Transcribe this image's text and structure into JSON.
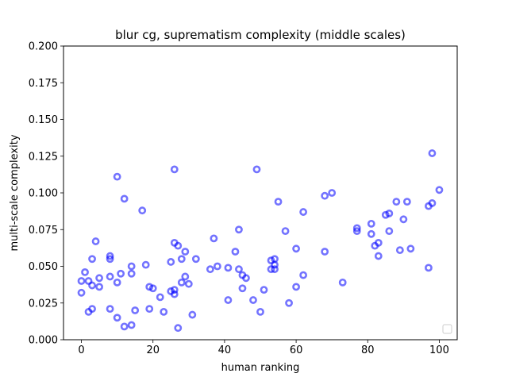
{
  "chart_data": {
    "type": "scatter",
    "title": "blur cg, suprematism complexity (middle scales)",
    "xlabel": "human ranking",
    "ylabel": "multi-scale complexity",
    "xlim": [
      -5,
      105
    ],
    "ylim": [
      0,
      0.2
    ],
    "xticks": [
      0,
      20,
      40,
      60,
      80,
      100
    ],
    "yticks": [
      0.0,
      0.025,
      0.05,
      0.075,
      0.1,
      0.125,
      0.15,
      0.175,
      0.2
    ],
    "ytick_labels": [
      "0.000",
      "0.025",
      "0.050",
      "0.075",
      "0.100",
      "0.125",
      "0.150",
      "0.175",
      "0.200"
    ],
    "grid": false,
    "legend": "lower-right (empty)",
    "marker_color": "#0000ff",
    "points": [
      [
        0,
        0.032
      ],
      [
        0,
        0.04
      ],
      [
        1,
        0.046
      ],
      [
        2,
        0.04
      ],
      [
        2,
        0.019
      ],
      [
        3,
        0.021
      ],
      [
        3,
        0.037
      ],
      [
        3,
        0.055
      ],
      [
        4,
        0.067
      ],
      [
        5,
        0.042
      ],
      [
        5,
        0.036
      ],
      [
        8,
        0.057
      ],
      [
        8,
        0.055
      ],
      [
        8,
        0.043
      ],
      [
        8,
        0.021
      ],
      [
        10,
        0.111
      ],
      [
        10,
        0.039
      ],
      [
        10,
        0.015
      ],
      [
        11,
        0.045
      ],
      [
        12,
        0.096
      ],
      [
        12,
        0.009
      ],
      [
        14,
        0.05
      ],
      [
        14,
        0.045
      ],
      [
        14,
        0.01
      ],
      [
        15,
        0.02
      ],
      [
        17,
        0.088
      ],
      [
        18,
        0.051
      ],
      [
        19,
        0.036
      ],
      [
        19,
        0.021
      ],
      [
        20,
        0.035
      ],
      [
        22,
        0.029
      ],
      [
        23,
        0.019
      ],
      [
        25,
        0.053
      ],
      [
        25,
        0.033
      ],
      [
        26,
        0.116
      ],
      [
        26,
        0.066
      ],
      [
        26,
        0.034
      ],
      [
        26,
        0.031
      ],
      [
        27,
        0.064
      ],
      [
        27,
        0.008
      ],
      [
        28,
        0.055
      ],
      [
        28,
        0.039
      ],
      [
        29,
        0.06
      ],
      [
        29,
        0.043
      ],
      [
        30,
        0.038
      ],
      [
        31,
        0.017
      ],
      [
        32,
        0.055
      ],
      [
        36,
        0.048
      ],
      [
        37,
        0.069
      ],
      [
        38,
        0.05
      ],
      [
        41,
        0.049
      ],
      [
        41,
        0.027
      ],
      [
        43,
        0.06
      ],
      [
        44,
        0.075
      ],
      [
        44,
        0.048
      ],
      [
        45,
        0.044
      ],
      [
        45,
        0.035
      ],
      [
        46,
        0.042
      ],
      [
        48,
        0.027
      ],
      [
        49,
        0.116
      ],
      [
        50,
        0.019
      ],
      [
        51,
        0.034
      ],
      [
        53,
        0.054
      ],
      [
        53,
        0.048
      ],
      [
        54,
        0.055
      ],
      [
        54,
        0.051
      ],
      [
        54,
        0.048
      ],
      [
        55,
        0.094
      ],
      [
        57,
        0.074
      ],
      [
        58,
        0.025
      ],
      [
        60,
        0.062
      ],
      [
        60,
        0.036
      ],
      [
        62,
        0.087
      ],
      [
        62,
        0.044
      ],
      [
        68,
        0.098
      ],
      [
        68,
        0.06
      ],
      [
        70,
        0.1
      ],
      [
        73,
        0.039
      ],
      [
        77,
        0.076
      ],
      [
        77,
        0.074
      ],
      [
        81,
        0.079
      ],
      [
        81,
        0.072
      ],
      [
        82,
        0.064
      ],
      [
        83,
        0.066
      ],
      [
        83,
        0.057
      ],
      [
        85,
        0.085
      ],
      [
        86,
        0.086
      ],
      [
        86,
        0.074
      ],
      [
        88,
        0.094
      ],
      [
        89,
        0.061
      ],
      [
        90,
        0.082
      ],
      [
        91,
        0.094
      ],
      [
        92,
        0.062
      ],
      [
        97,
        0.091
      ],
      [
        97,
        0.049
      ],
      [
        98,
        0.127
      ],
      [
        98,
        0.093
      ],
      [
        100,
        0.102
      ]
    ]
  }
}
